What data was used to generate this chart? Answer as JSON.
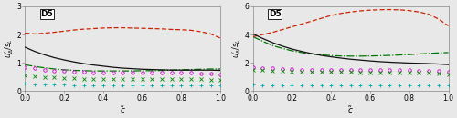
{
  "left": {
    "title": "D5",
    "ylabel": "$u^\\prime_\\Delta / s_L$",
    "xlabel": "$\\tilde{c}$",
    "ylim": [
      0,
      3
    ],
    "yticks": [
      0,
      1,
      2,
      3
    ],
    "xlim": [
      0,
      1
    ],
    "xticks": [
      0,
      0.2,
      0.4,
      0.6,
      0.8,
      1
    ],
    "lines": {
      "solid_black": {
        "color": "#111111",
        "style": "-",
        "lw": 0.9,
        "x": [
          0.0,
          0.05,
          0.1,
          0.15,
          0.2,
          0.25,
          0.3,
          0.35,
          0.4,
          0.45,
          0.5,
          0.55,
          0.6,
          0.65,
          0.7,
          0.75,
          0.8,
          0.85,
          0.9,
          0.95,
          1.0
        ],
        "y": [
          1.55,
          1.4,
          1.28,
          1.18,
          1.1,
          1.03,
          0.97,
          0.92,
          0.88,
          0.84,
          0.81,
          0.79,
          0.77,
          0.76,
          0.75,
          0.74,
          0.74,
          0.74,
          0.74,
          0.74,
          0.73
        ]
      },
      "dashed_red": {
        "color": "#cc2200",
        "style": "--",
        "lw": 0.9,
        "x": [
          0.0,
          0.05,
          0.1,
          0.15,
          0.2,
          0.25,
          0.3,
          0.35,
          0.4,
          0.45,
          0.5,
          0.55,
          0.6,
          0.65,
          0.7,
          0.75,
          0.8,
          0.85,
          0.9,
          0.95,
          1.0
        ],
        "y": [
          2.05,
          2.02,
          2.05,
          2.08,
          2.12,
          2.16,
          2.19,
          2.21,
          2.23,
          2.24,
          2.24,
          2.23,
          2.22,
          2.21,
          2.2,
          2.18,
          2.17,
          2.15,
          2.1,
          2.02,
          1.87
        ]
      },
      "dashdot_darkgreen": {
        "color": "#007700",
        "style": "-.",
        "lw": 0.9,
        "x": [
          0.0,
          0.05,
          0.1,
          0.15,
          0.2,
          0.25,
          0.3,
          0.35,
          0.4,
          0.45,
          0.5,
          0.55,
          0.6,
          0.65,
          0.7,
          0.75,
          0.8,
          0.85,
          0.9,
          0.95,
          1.0
        ],
        "y": [
          0.93,
          0.87,
          0.82,
          0.78,
          0.75,
          0.73,
          0.72,
          0.71,
          0.71,
          0.71,
          0.71,
          0.71,
          0.72,
          0.72,
          0.73,
          0.74,
          0.75,
          0.76,
          0.77,
          0.78,
          0.78
        ]
      },
      "circle_magenta": {
        "color": "#cc00cc",
        "marker": "o",
        "lw": 0.8,
        "ms": 2.5,
        "x": [
          0.0,
          0.05,
          0.1,
          0.15,
          0.2,
          0.25,
          0.3,
          0.35,
          0.4,
          0.45,
          0.5,
          0.55,
          0.6,
          0.65,
          0.7,
          0.75,
          0.8,
          0.85,
          0.9,
          0.95,
          1.0
        ],
        "y": [
          0.85,
          0.8,
          0.76,
          0.72,
          0.7,
          0.68,
          0.67,
          0.66,
          0.65,
          0.65,
          0.65,
          0.65,
          0.65,
          0.65,
          0.65,
          0.65,
          0.64,
          0.64,
          0.63,
          0.62,
          0.6
        ]
      },
      "cross_green": {
        "color": "#008800",
        "marker": "+",
        "lw": 0.8,
        "ms": 3.0,
        "x": [
          0.0,
          0.05,
          0.1,
          0.15,
          0.2,
          0.25,
          0.3,
          0.35,
          0.4,
          0.45,
          0.5,
          0.55,
          0.6,
          0.65,
          0.7,
          0.75,
          0.8,
          0.85,
          0.9,
          0.95,
          1.0
        ],
        "y": [
          0.55,
          0.52,
          0.5,
          0.48,
          0.46,
          0.45,
          0.44,
          0.43,
          0.43,
          0.43,
          0.43,
          0.43,
          0.42,
          0.42,
          0.42,
          0.42,
          0.42,
          0.41,
          0.41,
          0.4,
          0.39
        ]
      },
      "plus_cyan": {
        "color": "#00aaaa",
        "marker": "+",
        "lw": 0.8,
        "ms": 3.0,
        "x": [
          0.0,
          0.05,
          0.1,
          0.15,
          0.2,
          0.25,
          0.3,
          0.35,
          0.4,
          0.45,
          0.5,
          0.55,
          0.6,
          0.65,
          0.7,
          0.75,
          0.8,
          0.85,
          0.9,
          0.95,
          1.0
        ],
        "y": [
          0.25,
          0.24,
          0.23,
          0.22,
          0.22,
          0.21,
          0.21,
          0.21,
          0.21,
          0.21,
          0.21,
          0.21,
          0.21,
          0.21,
          0.21,
          0.21,
          0.21,
          0.21,
          0.21,
          0.2,
          0.19
        ]
      }
    }
  },
  "right": {
    "title": "D5",
    "ylabel": "$u^\\prime_\\Delta / s_L$",
    "xlabel": "$\\tilde{c}$",
    "ylim": [
      0,
      6
    ],
    "yticks": [
      0,
      2,
      4,
      6
    ],
    "xlim": [
      0,
      1
    ],
    "xticks": [
      0,
      0.2,
      0.4,
      0.6,
      0.8,
      1
    ],
    "lines": {
      "solid_black": {
        "color": "#111111",
        "style": "-",
        "lw": 0.9,
        "x": [
          0.0,
          0.05,
          0.1,
          0.15,
          0.2,
          0.25,
          0.3,
          0.35,
          0.4,
          0.45,
          0.5,
          0.55,
          0.6,
          0.65,
          0.7,
          0.75,
          0.8,
          0.85,
          0.9,
          0.95,
          1.0
        ],
        "y": [
          4.05,
          3.72,
          3.43,
          3.18,
          2.97,
          2.8,
          2.65,
          2.52,
          2.42,
          2.33,
          2.25,
          2.19,
          2.13,
          2.08,
          2.04,
          2.01,
          1.98,
          1.96,
          1.94,
          1.91,
          1.87
        ]
      },
      "dashed_red": {
        "color": "#cc2200",
        "style": "--",
        "lw": 0.9,
        "x": [
          0.0,
          0.05,
          0.1,
          0.15,
          0.2,
          0.25,
          0.3,
          0.35,
          0.4,
          0.45,
          0.5,
          0.55,
          0.6,
          0.65,
          0.7,
          0.75,
          0.8,
          0.85,
          0.9,
          0.95,
          1.0
        ],
        "y": [
          3.85,
          4.0,
          4.15,
          4.35,
          4.55,
          4.75,
          4.95,
          5.15,
          5.35,
          5.5,
          5.6,
          5.68,
          5.73,
          5.76,
          5.77,
          5.75,
          5.7,
          5.6,
          5.44,
          5.1,
          4.62
        ]
      },
      "dashdot_darkgreen": {
        "color": "#007700",
        "style": "-.",
        "lw": 0.9,
        "x": [
          0.0,
          0.05,
          0.1,
          0.15,
          0.2,
          0.25,
          0.3,
          0.35,
          0.4,
          0.45,
          0.5,
          0.55,
          0.6,
          0.65,
          0.7,
          0.75,
          0.8,
          0.85,
          0.9,
          0.95,
          1.0
        ],
        "y": [
          3.85,
          3.52,
          3.22,
          3.02,
          2.85,
          2.72,
          2.63,
          2.56,
          2.51,
          2.48,
          2.47,
          2.47,
          2.48,
          2.5,
          2.52,
          2.55,
          2.58,
          2.62,
          2.66,
          2.7,
          2.72
        ]
      },
      "circle_magenta": {
        "color": "#cc00cc",
        "marker": "o",
        "lw": 0.8,
        "ms": 2.5,
        "x": [
          0.0,
          0.05,
          0.1,
          0.15,
          0.2,
          0.25,
          0.3,
          0.35,
          0.4,
          0.45,
          0.5,
          0.55,
          0.6,
          0.65,
          0.7,
          0.75,
          0.8,
          0.85,
          0.9,
          0.95,
          1.0
        ],
        "y": [
          1.68,
          1.63,
          1.59,
          1.56,
          1.54,
          1.52,
          1.51,
          1.5,
          1.5,
          1.5,
          1.49,
          1.49,
          1.49,
          1.49,
          1.48,
          1.48,
          1.47,
          1.46,
          1.44,
          1.42,
          1.38
        ]
      },
      "cross_green": {
        "color": "#008800",
        "marker": "+",
        "lw": 0.8,
        "ms": 3.0,
        "x": [
          0.0,
          0.05,
          0.1,
          0.15,
          0.2,
          0.25,
          0.3,
          0.35,
          0.4,
          0.45,
          0.5,
          0.55,
          0.6,
          0.65,
          0.7,
          0.75,
          0.8,
          0.85,
          0.9,
          0.95,
          1.0
        ],
        "y": [
          1.52,
          1.48,
          1.44,
          1.41,
          1.39,
          1.37,
          1.36,
          1.35,
          1.35,
          1.34,
          1.34,
          1.33,
          1.33,
          1.32,
          1.32,
          1.31,
          1.3,
          1.29,
          1.27,
          1.24,
          1.2
        ]
      },
      "plus_cyan": {
        "color": "#00aaaa",
        "marker": "+",
        "lw": 0.8,
        "ms": 3.0,
        "x": [
          0.0,
          0.05,
          0.1,
          0.15,
          0.2,
          0.25,
          0.3,
          0.35,
          0.4,
          0.45,
          0.5,
          0.55,
          0.6,
          0.65,
          0.7,
          0.75,
          0.8,
          0.85,
          0.9,
          0.95,
          1.0
        ],
        "y": [
          0.44,
          0.43,
          0.43,
          0.43,
          0.42,
          0.42,
          0.42,
          0.42,
          0.42,
          0.42,
          0.42,
          0.42,
          0.42,
          0.42,
          0.42,
          0.42,
          0.42,
          0.42,
          0.42,
          0.42,
          0.41
        ]
      }
    }
  },
  "bg_color": "#e8e8e8",
  "spine_color": "#888888"
}
